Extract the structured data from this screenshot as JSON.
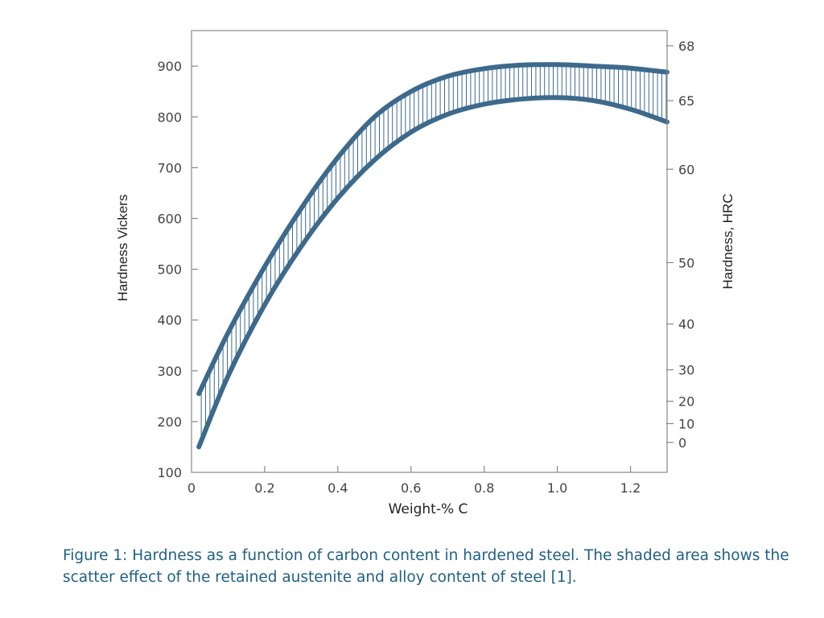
{
  "caption": "Figure 1: Hardness as a function of carbon content in hardened steel. The shaded area shows the scatter effect of the retained austenite and alloy content of steel [1].",
  "chart_data": {
    "type": "area",
    "title": "",
    "xlabel": "Weight-% C",
    "ylabel": "Hardness Vickers",
    "y2label": "Hardness, HRC",
    "xlim": [
      0,
      1.3
    ],
    "ylim": [
      100,
      970
    ],
    "x_ticks": [
      0,
      0.2,
      0.4,
      0.6,
      0.8,
      1.0,
      1.2
    ],
    "x_tick_labels": [
      "0",
      "0.2",
      "0.4",
      "0.6",
      "0.8",
      "1.0",
      "1.2"
    ],
    "y_ticks": [
      100,
      200,
      300,
      400,
      500,
      600,
      700,
      800,
      900
    ],
    "y_tick_labels": [
      "100",
      "200",
      "300",
      "400",
      "500",
      "600",
      "700",
      "800",
      "900"
    ],
    "y2_ticks": [
      {
        "label": "68",
        "hv": 940
      },
      {
        "label": "65",
        "hv": 832
      },
      {
        "label": "60",
        "hv": 697
      },
      {
        "label": "50",
        "hv": 513
      },
      {
        "label": "40",
        "hv": 392
      },
      {
        "label": "30",
        "hv": 302
      },
      {
        "label": "20",
        "hv": 240
      },
      {
        "label": "10",
        "hv": 196
      },
      {
        "label": "0",
        "hv": 159
      }
    ],
    "grid": false,
    "legend": "none",
    "colors": {
      "band": "#3d6a8c"
    },
    "series": [
      {
        "x": [
          0.02,
          0.1,
          0.2,
          0.3,
          0.4,
          0.5,
          0.6,
          0.7,
          0.8,
          0.9,
          1.0,
          1.1,
          1.2,
          1.3
        ],
        "values": [
          255,
          375,
          505,
          620,
          720,
          800,
          850,
          880,
          895,
          902,
          903,
          900,
          896,
          888
        ]
      },
      {
        "x": [
          0.02,
          0.1,
          0.2,
          0.3,
          0.4,
          0.5,
          0.6,
          0.7,
          0.8,
          0.9,
          1.0,
          1.1,
          1.2,
          1.3
        ],
        "values": [
          150,
          290,
          430,
          545,
          640,
          715,
          770,
          805,
          825,
          835,
          838,
          832,
          815,
          790
        ]
      }
    ]
  }
}
